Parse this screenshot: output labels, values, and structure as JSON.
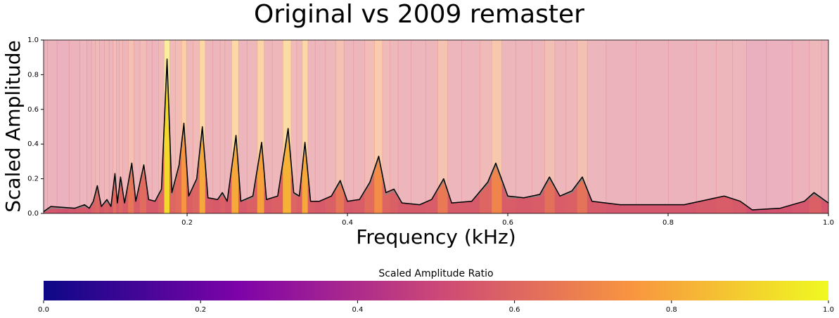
{
  "chart_data": {
    "type": "line",
    "title": "Original vs 2009 remaster",
    "xlabel": "Frequency (kHz)",
    "ylabel": "Scaled Amplitude",
    "x": [
      0.021,
      0.03,
      0.045,
      0.06,
      0.072,
      0.078,
      0.083,
      0.088,
      0.093,
      0.1,
      0.105,
      0.11,
      0.113,
      0.117,
      0.122,
      0.131,
      0.136,
      0.146,
      0.152,
      0.16,
      0.168,
      0.175,
      0.181,
      0.19,
      0.196,
      0.202,
      0.212,
      0.219,
      0.226,
      0.238,
      0.244,
      0.25,
      0.261,
      0.267,
      0.282,
      0.293,
      0.299,
      0.313,
      0.326,
      0.333,
      0.34,
      0.347,
      0.354,
      0.365,
      0.38,
      0.391,
      0.4,
      0.415,
      0.428,
      0.439,
      0.448,
      0.458,
      0.468,
      0.49,
      0.505,
      0.52,
      0.53,
      0.555,
      0.575,
      0.585,
      0.6,
      0.62,
      0.64,
      0.652,
      0.665,
      0.68,
      0.693,
      0.705,
      0.74,
      0.78,
      0.82,
      0.85,
      0.87,
      0.89,
      0.905,
      0.94,
      0.97,
      0.982,
      1.0
    ],
    "series": [
      {
        "color": "#888888",
        "values": [
          0.01,
          0.03,
          0.03,
          0.03,
          0.04,
          0.03,
          0.06,
          0.15,
          0.04,
          0.07,
          0.04,
          0.22,
          0.06,
          0.2,
          0.06,
          0.27,
          0.07,
          0.27,
          0.08,
          0.07,
          0.13,
          0.88,
          0.11,
          0.27,
          0.5,
          0.1,
          0.19,
          0.48,
          0.09,
          0.08,
          0.11,
          0.07,
          0.44,
          0.07,
          0.09,
          0.4,
          0.08,
          0.1,
          0.47,
          0.11,
          0.1,
          0.4,
          0.07,
          0.07,
          0.1,
          0.18,
          0.07,
          0.08,
          0.17,
          0.32,
          0.11,
          0.13,
          0.06,
          0.05,
          0.08,
          0.19,
          0.06,
          0.07,
          0.17,
          0.28,
          0.09,
          0.09,
          0.1,
          0.2,
          0.1,
          0.12,
          0.2,
          0.07,
          0.05,
          0.05,
          0.05,
          0.08,
          0.1,
          0.07,
          0.02,
          0.03,
          0.07,
          0.11,
          0.06
        ]
      },
      {
        "color": "#000000",
        "values": [
          0.01,
          0.04,
          0.035,
          0.03,
          0.05,
          0.03,
          0.07,
          0.16,
          0.04,
          0.08,
          0.04,
          0.23,
          0.06,
          0.21,
          0.06,
          0.29,
          0.07,
          0.28,
          0.08,
          0.07,
          0.14,
          0.89,
          0.12,
          0.28,
          0.52,
          0.1,
          0.2,
          0.5,
          0.09,
          0.08,
          0.12,
          0.07,
          0.45,
          0.07,
          0.1,
          0.41,
          0.08,
          0.1,
          0.49,
          0.12,
          0.1,
          0.41,
          0.07,
          0.07,
          0.1,
          0.19,
          0.07,
          0.08,
          0.18,
          0.33,
          0.12,
          0.14,
          0.06,
          0.05,
          0.08,
          0.2,
          0.06,
          0.07,
          0.18,
          0.29,
          0.1,
          0.09,
          0.11,
          0.21,
          0.1,
          0.13,
          0.21,
          0.07,
          0.05,
          0.05,
          0.05,
          0.08,
          0.1,
          0.07,
          0.02,
          0.03,
          0.07,
          0.12,
          0.06
        ]
      }
    ],
    "background_values": [
      0.55,
      0.55,
      0.54,
      0.55,
      0.56,
      0.55,
      0.58,
      0.6,
      0.56,
      0.58,
      0.56,
      0.62,
      0.57,
      0.6,
      0.57,
      0.65,
      0.57,
      0.62,
      0.56,
      0.56,
      0.6,
      0.92,
      0.6,
      0.62,
      0.75,
      0.58,
      0.6,
      0.8,
      0.57,
      0.56,
      0.58,
      0.56,
      0.8,
      0.56,
      0.58,
      0.78,
      0.57,
      0.58,
      0.82,
      0.6,
      0.58,
      0.8,
      0.57,
      0.56,
      0.58,
      0.65,
      0.56,
      0.57,
      0.62,
      0.72,
      0.6,
      0.58,
      0.56,
      0.56,
      0.57,
      0.66,
      0.56,
      0.56,
      0.6,
      0.7,
      0.57,
      0.56,
      0.57,
      0.63,
      0.57,
      0.58,
      0.64,
      0.56,
      0.55,
      0.55,
      0.55,
      0.56,
      0.57,
      0.56,
      0.53,
      0.54,
      0.55,
      0.58,
      0.55
    ],
    "colormap": "plasma",
    "xlim": [
      0.021,
      1.0
    ],
    "ylim": [
      0,
      1
    ],
    "xticks": [
      0.2,
      0.4,
      0.6,
      0.8,
      {
        "value": 1,
        "label": "1.0"
      }
    ],
    "yticks": [
      {
        "value": 0,
        "label": "0.0"
      },
      0.2,
      0.4,
      0.6,
      0.8,
      {
        "value": 1,
        "label": "1.0"
      }
    ],
    "colorbar": {
      "label": "Scaled Amplitude Ratio",
      "lim": [
        0,
        1
      ],
      "ticks": [
        {
          "value": 0,
          "label": "0.0"
        },
        0.2,
        0.4,
        0.6,
        0.8,
        {
          "value": 1,
          "label": "1.0"
        }
      ]
    }
  }
}
